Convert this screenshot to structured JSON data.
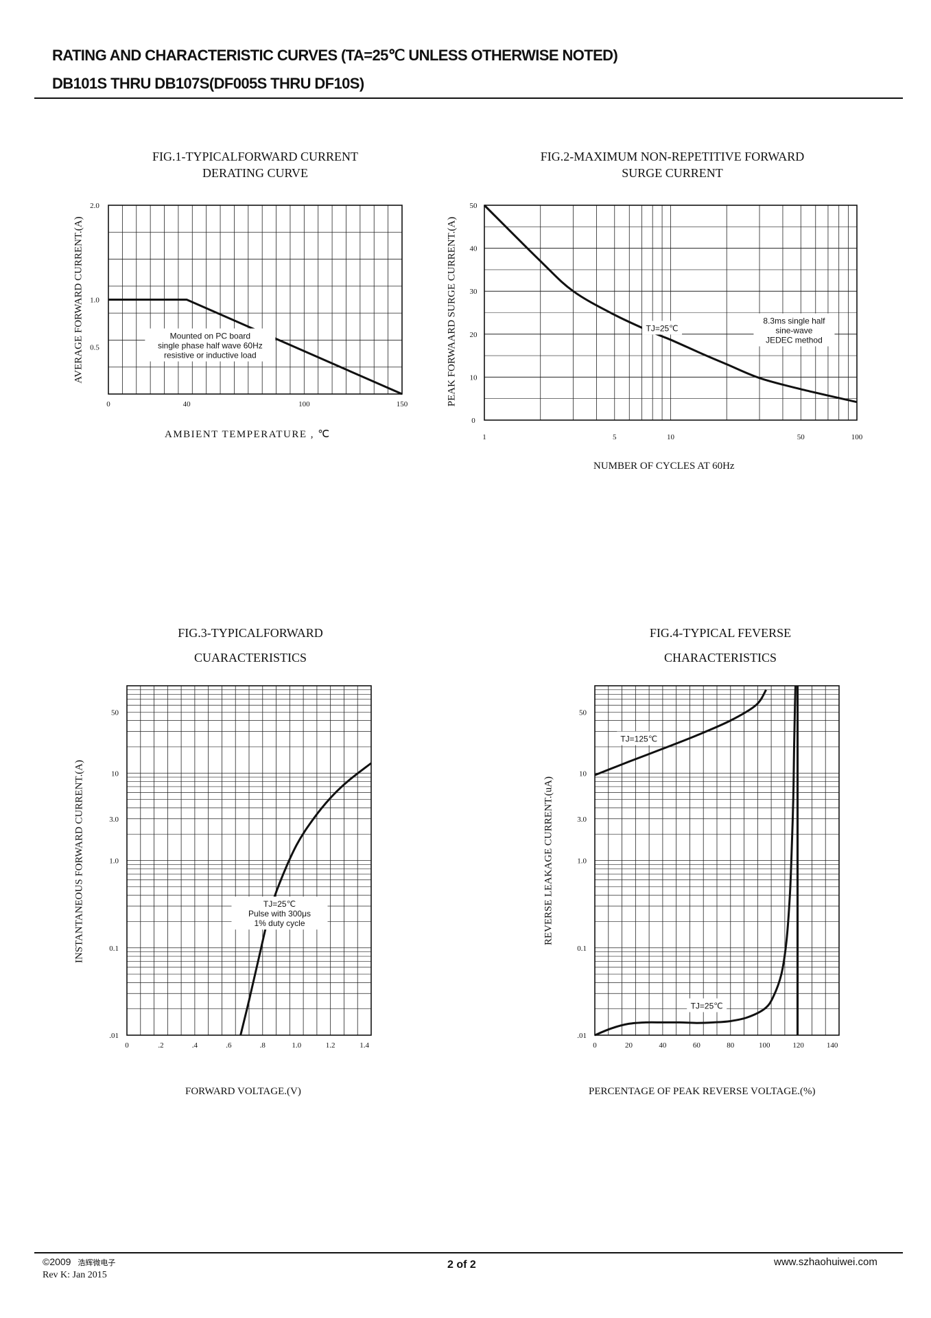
{
  "header": {
    "line1": "RATING AND CHARACTERISTIC CURVES (TA=25℃ UNLESS OTHERWISE NOTED)",
    "line2": "DB101S THRU DB107S(DF005S THRU DF10S)"
  },
  "footer": {
    "copyright": "©2009",
    "company": "浩辉微电子",
    "revision": "Rev K:  Jan  2015",
    "page": "2 of  2",
    "website": "www.szhaohuiwei.com"
  },
  "chart_data": [
    {
      "id": "fig1",
      "type": "line",
      "title": [
        "FIG.1-TYPICALFORWARD CURRENT",
        "DERATING CURVE"
      ],
      "xlabel": "AMBIENT TEMPERATURE , ℃",
      "ylabel": "AVERAGE FORWARD CURRENT.(A)",
      "xlim": [
        0,
        150
      ],
      "ylim": [
        0,
        2.0
      ],
      "x_ticks": [
        0,
        40,
        100,
        150
      ],
      "y_ticks": [
        {
          "v": 2.0,
          "label": "2.0"
        },
        {
          "v": 1.0,
          "label": "1.0"
        },
        {
          "v": 0.5,
          "label": "0.5"
        }
      ],
      "grid": true,
      "series": [
        {
          "name": "derating",
          "x": [
            0,
            40,
            150
          ],
          "y": [
            1.0,
            1.0,
            0
          ]
        }
      ],
      "annotations": [
        {
          "text": [
            "Mounted on PC board",
            "single phase half wave 60Hz",
            "resistive or inductive load"
          ],
          "x": 52,
          "y": 0.52
        }
      ]
    },
    {
      "id": "fig2",
      "type": "line",
      "title": [
        "FIG.2-MAXIMUM NON-REPETITIVE FORWARD",
        "SURGE CURRENT"
      ],
      "xlabel": "NUMBER OF CYCLES AT 60Hz",
      "ylabel": "PEAK FORWAARD  SURGE  CURRENT.(A)",
      "xscale": "log",
      "xlim": [
        1,
        100
      ],
      "ylim": [
        0,
        50
      ],
      "x_ticks": [
        1,
        5,
        10,
        50,
        100
      ],
      "y_ticks": [
        0,
        10,
        20,
        30,
        40,
        50
      ],
      "grid": true,
      "series": [
        {
          "name": "surge",
          "x": [
            1,
            2,
            3,
            5,
            8,
            10,
            15,
            20,
            30,
            50,
            100
          ],
          "y": [
            50,
            37,
            30,
            24.5,
            20.4,
            18.7,
            15.3,
            13,
            9.8,
            7.2,
            4.2
          ]
        }
      ],
      "annotations": [
        {
          "text": [
            "TJ=25℃"
          ],
          "x": 9,
          "y": 21.5
        },
        {
          "text": [
            "8.3ms single half",
            "sine-wave",
            "JEDEC method"
          ],
          "x": 46,
          "y": 21
        }
      ]
    },
    {
      "id": "fig3",
      "type": "line",
      "title": [
        "FIG.3-TYPICALFORWARD",
        "CUARACTERISTICS"
      ],
      "xlabel": "FORWARD VOLTAGE.(V)",
      "ylabel": "INSTANTANEOUS FORWARD CURRENT.(A)",
      "yscale": "log",
      "xlim": [
        0,
        1.44
      ],
      "ylim": [
        0.01,
        100
      ],
      "x_ticks": [
        0,
        0.2,
        0.4,
        0.6,
        0.8,
        1.0,
        1.2,
        1.4
      ],
      "x_tick_labels": [
        "0",
        ".2",
        ".4",
        ".6",
        ".8",
        "1.0",
        "1.2",
        "1.4"
      ],
      "y_ticks": [
        {
          "v": 50,
          "label": "50"
        },
        {
          "v": 10,
          "label": "10"
        },
        {
          "v": 3,
          "label": "3.0"
        },
        {
          "v": 1,
          "label": "1.0"
        },
        {
          "v": 0.1,
          "label": "0.1"
        },
        {
          "v": 0.01,
          "label": ".01"
        }
      ],
      "grid": true,
      "series": [
        {
          "name": "TJ=25C",
          "x": [
            0.67,
            0.72,
            0.78,
            0.84,
            0.9,
            1.0,
            1.1,
            1.2,
            1.3,
            1.44
          ],
          "y": [
            0.01,
            0.025,
            0.08,
            0.25,
            0.55,
            1.5,
            3.0,
            5.2,
            8.0,
            13
          ]
        }
      ],
      "annotations": [
        {
          "text": [
            "TJ=25℃",
            "Pulse with 300μs",
            "1% duty cycle"
          ],
          "x": 0.9,
          "y": 0.25
        }
      ]
    },
    {
      "id": "fig4",
      "type": "line",
      "title": [
        "FIG.4-TYPICAL FEVERSE",
        "CHARACTERISTICS"
      ],
      "xlabel": "PERCENTAGE OF PEAK REVERSE VOLTAGE.(%)",
      "ylabel": "REVERSE LEAKAGE CURRENT.(uA)",
      "yscale": "log",
      "xlim": [
        0,
        144
      ],
      "ylim": [
        0.01,
        100
      ],
      "x_ticks": [
        0,
        20,
        40,
        60,
        80,
        100,
        120,
        140
      ],
      "y_ticks": [
        {
          "v": 50,
          "label": "50"
        },
        {
          "v": 10,
          "label": "10"
        },
        {
          "v": 3,
          "label": "3.0"
        },
        {
          "v": 1,
          "label": "1.0"
        },
        {
          "v": 0.1,
          "label": "0.1"
        },
        {
          "v": 0.01,
          "label": ".01"
        }
      ],
      "grid": true,
      "series": [
        {
          "name": "TJ=125C",
          "x": [
            0,
            20,
            40,
            60,
            80,
            95,
            101
          ],
          "y": [
            9.5,
            13.5,
            19,
            27,
            40,
            60,
            90
          ]
        },
        {
          "name": "TJ=25C",
          "x": [
            0,
            10,
            20,
            30,
            40,
            50,
            60,
            70,
            80,
            90,
            100,
            105,
            110,
            113,
            115,
            116,
            117,
            117.5,
            118,
            118.3
          ],
          "y": [
            0.01,
            0.012,
            0.0135,
            0.014,
            0.014,
            0.014,
            0.0138,
            0.014,
            0.0145,
            0.016,
            0.02,
            0.027,
            0.05,
            0.12,
            0.4,
            1.2,
            5,
            20,
            60,
            100
          ]
        },
        {
          "name": "breakdown",
          "x": [
            119.5,
            119.5
          ],
          "y": [
            0.01,
            100
          ]
        }
      ],
      "annotations": [
        {
          "text": [
            "TJ=125℃"
          ],
          "x": 26,
          "y": 25
        },
        {
          "text": [
            "TJ=25℃"
          ],
          "x": 66,
          "y": 0.022
        }
      ]
    }
  ]
}
